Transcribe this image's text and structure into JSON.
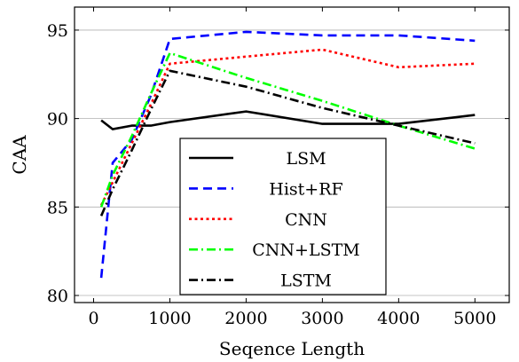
{
  "chart_data": {
    "type": "line",
    "xlabel": "Seqence Length",
    "ylabel": "CAA",
    "xlim": [
      -250,
      5450
    ],
    "ylim": [
      79.6,
      96.3
    ],
    "xticks": [
      0,
      1000,
      2000,
      3000,
      4000,
      5000
    ],
    "yticks": [
      80,
      85,
      90,
      95
    ],
    "grid": "horizontal",
    "legend_position": "bottom-center",
    "series": [
      {
        "name": "LSM",
        "color": "#000000",
        "dash": "solid",
        "x": [
          100,
          250,
          500,
          750,
          1000,
          2000,
          3000,
          4000,
          5000
        ],
        "y": [
          89.9,
          89.4,
          89.6,
          89.6,
          89.8,
          90.4,
          89.7,
          89.7,
          90.2
        ]
      },
      {
        "name": "Hist+RF",
        "color": "#0000ff",
        "dash": "dashed",
        "x": [
          100,
          250,
          500,
          750,
          1000,
          2000,
          3000,
          4000,
          5000
        ],
        "y": [
          81.0,
          87.5,
          88.8,
          91.3,
          94.5,
          94.9,
          94.7,
          94.7,
          94.4
        ]
      },
      {
        "name": "CNN",
        "color": "#ff0000",
        "dash": "dotted",
        "x": [
          100,
          250,
          500,
          750,
          1000,
          2000,
          3000,
          4000,
          5000
        ],
        "y": [
          85.1,
          86.4,
          88.6,
          90.8,
          93.1,
          93.5,
          93.9,
          92.9,
          93.1
        ]
      },
      {
        "name": "CNN+LSTM",
        "color": "#00ff00",
        "dash": "dashdot",
        "x": [
          100,
          250,
          500,
          750,
          1000,
          2000,
          3000,
          4000,
          5000
        ],
        "y": [
          85.0,
          86.8,
          89.0,
          91.4,
          93.7,
          92.3,
          91.0,
          89.6,
          88.3
        ]
      },
      {
        "name": "LSTM",
        "color": "#000000",
        "dash": "dashdot",
        "x": [
          100,
          250,
          500,
          750,
          1000,
          2000,
          3000,
          4000,
          5000
        ],
        "y": [
          84.5,
          86.0,
          88.2,
          90.5,
          92.7,
          91.8,
          90.6,
          89.6,
          88.6
        ]
      }
    ]
  }
}
